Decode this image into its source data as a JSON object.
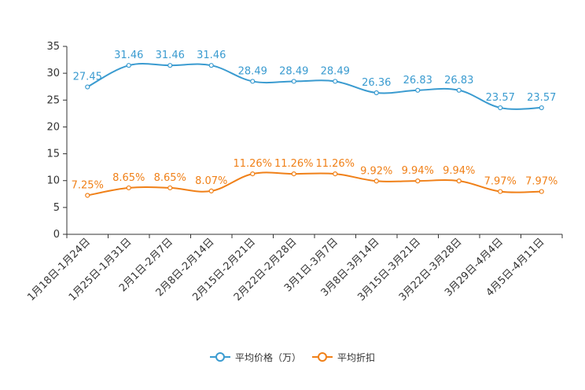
{
  "chart_data": {
    "type": "line",
    "title": "",
    "xlabel": "",
    "ylabel": "",
    "ylim": [
      0,
      35
    ],
    "yticks": [
      0,
      5,
      10,
      15,
      20,
      25,
      30,
      35
    ],
    "categories": [
      "1月18日-1月24日",
      "1月25日-1月31日",
      "2月1日-2月7日",
      "2月8日-2月14日",
      "2月15日-2月21日",
      "2月22日-2月28日",
      "3月1日-3月7日",
      "3月8日-3月14日",
      "3月15日-3月21日",
      "3月22日-3月28日",
      "3月29日-4月4日",
      "4月5日-4月11日"
    ],
    "series": [
      {
        "name": "平均价格（万）",
        "color": "#3a9bd0",
        "values": [
          27.45,
          31.46,
          31.46,
          31.46,
          28.49,
          28.49,
          28.49,
          26.36,
          26.83,
          26.83,
          23.57,
          23.57
        ],
        "labels": [
          "27.45",
          "31.46",
          "31.46",
          "31.46",
          "28.49",
          "28.49",
          "28.49",
          "26.36",
          "26.83",
          "26.83",
          "23.57",
          "23.57"
        ]
      },
      {
        "name": "平均折扣",
        "color": "#f08018",
        "values": [
          7.25,
          8.65,
          8.65,
          8.07,
          11.26,
          11.26,
          11.26,
          9.92,
          9.94,
          9.94,
          7.97,
          7.97
        ],
        "labels": [
          "7.25%",
          "8.65%",
          "8.65%",
          "8.07%",
          "11.26%",
          "11.26%",
          "11.26%",
          "9.92%",
          "9.94%",
          "9.94%",
          "7.97%",
          "7.97%"
        ]
      }
    ],
    "legend_position": "bottom-center",
    "grid": false
  }
}
